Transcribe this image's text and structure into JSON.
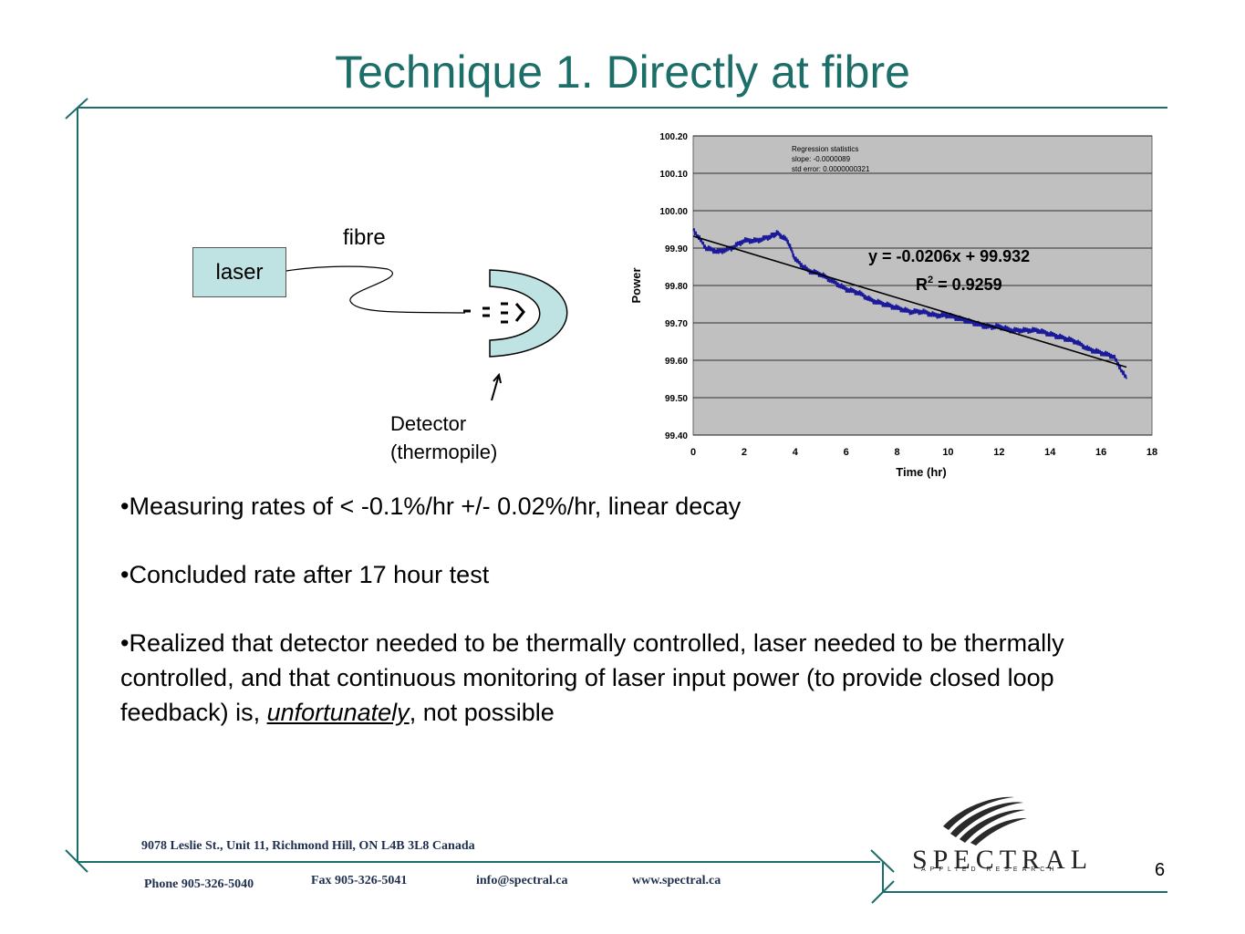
{
  "slide": {
    "title": "Technique 1. Directly at fibre",
    "page_number": "6",
    "accent_color": "#1c6e68"
  },
  "diagram": {
    "laser_label": "laser",
    "fibre_label": "fibre",
    "detector_label_line1": "Detector",
    "detector_label_line2": "(thermopile)"
  },
  "chart_data": {
    "type": "line",
    "xlabel": "Time (hr)",
    "ylabel": "Power",
    "xlim": [
      0,
      18
    ],
    "ylim": [
      99.4,
      100.2
    ],
    "x_ticks": [
      "0",
      "2",
      "4",
      "6",
      "8",
      "10",
      "12",
      "14",
      "16",
      "18"
    ],
    "y_ticks": [
      "99.40",
      "99.50",
      "99.60",
      "99.70",
      "99.80",
      "99.90",
      "100.00",
      "100.10",
      "100.20"
    ],
    "grid": true,
    "plot_background": "#c0c0c0",
    "regression_box": [
      "Regression statistics",
      "slope: -0.0000089",
      "std error: 0.0000000321"
    ],
    "equation": "y = -0.0206x + 99.932",
    "r_squared_prefix": "R",
    "r_squared_exp": "2",
    "r_squared_value": " = 0.9259",
    "trendline": {
      "slope": -0.0206,
      "intercept": 99.932,
      "x_range": [
        0,
        17
      ],
      "color": "#000000"
    },
    "series": [
      {
        "color": "#1a1a9a",
        "x": [
          0,
          0.5,
          1,
          1.5,
          2,
          2.5,
          3,
          3.3,
          3.7,
          4,
          4.5,
          5,
          5.5,
          6,
          6.5,
          7,
          7.5,
          8,
          8.5,
          9,
          9.5,
          10,
          10.5,
          11,
          11.5,
          12,
          12.5,
          13,
          13.5,
          14,
          14.5,
          15,
          15.5,
          16,
          16.5,
          17
        ],
        "y": [
          99.95,
          99.9,
          99.89,
          99.9,
          99.92,
          99.92,
          99.93,
          99.94,
          99.92,
          99.87,
          99.84,
          99.83,
          99.81,
          99.79,
          99.78,
          99.76,
          99.75,
          99.74,
          99.73,
          99.73,
          99.72,
          99.72,
          99.71,
          99.7,
          99.69,
          99.69,
          99.68,
          99.68,
          99.68,
          99.67,
          99.66,
          99.65,
          99.63,
          99.62,
          99.61,
          99.55
        ]
      }
    ]
  },
  "bullets": {
    "b1": "•Measuring rates of < -0.1%/hr +/- 0.02%/hr, linear decay",
    "b2": "•Concluded rate after 17 hour test",
    "b3_part1": "•Realized that detector needed to be thermally controlled, laser needed to be thermally controlled, and that continuous monitoring of laser input power (to provide closed loop feedback) is, ",
    "b3_emph": "unfortunately",
    "b3_part2": ", not possible"
  },
  "footer": {
    "address": "9078 Leslie St., Unit 11, Richmond Hill, ON L4B 3L8 Canada",
    "phone": "Phone 905-326-5040",
    "fax": "Fax 905-326-5041",
    "email": "info@spectral.ca",
    "web": "www.spectral.ca"
  },
  "logo": {
    "name": "SPECTRAL",
    "subtitle": "APPLIED RESEARCH"
  }
}
